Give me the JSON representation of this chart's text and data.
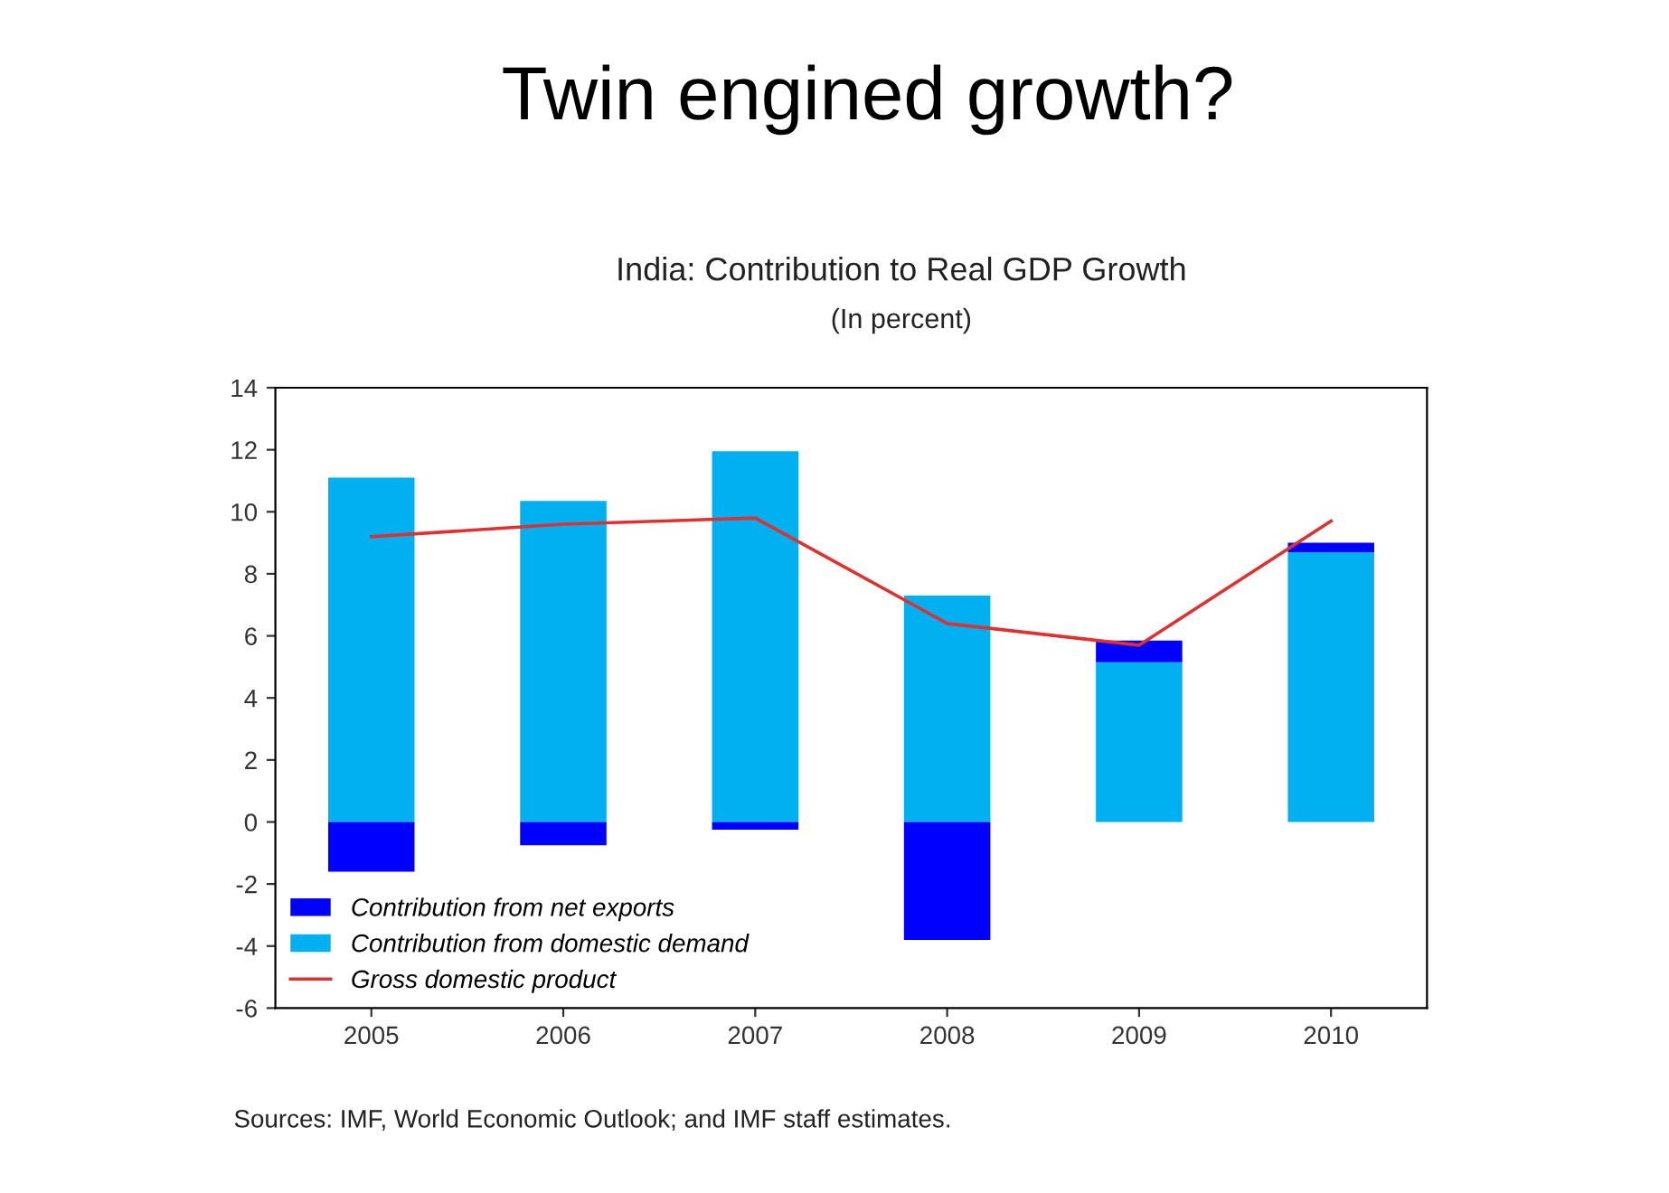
{
  "chart_data": {
    "type": "bar",
    "stacked": true,
    "title": "India: Contribution to Real GDP Growth",
    "subtitle": "(In percent)",
    "annotations": [
      "Twin engined growth?",
      "Sources: IMF, World Economic Outlook; and IMF staff estimates."
    ],
    "categories": [
      "2005",
      "2006",
      "2007",
      "2008",
      "2009",
      "2010"
    ],
    "series": [
      {
        "name": "Contribution from domestic demand",
        "color": "#00b0f0",
        "values": [
          11.1,
          10.35,
          11.95,
          7.3,
          5.15,
          8.7
        ]
      },
      {
        "name": "Contribution from net exports",
        "color": "#0000ff",
        "values": [
          -1.6,
          -0.75,
          -0.25,
          -3.8,
          0.7,
          0.3
        ]
      },
      {
        "name": "Gross domestic product",
        "type": "line",
        "color": "#e03030",
        "values": [
          9.2,
          9.6,
          9.8,
          6.4,
          5.7,
          9.7
        ]
      }
    ],
    "ylim": [
      -6,
      14
    ],
    "yticks": [
      -6,
      -4,
      -2,
      0,
      2,
      4,
      6,
      8,
      10,
      12,
      14
    ],
    "grid": false,
    "legend": "bottom left",
    "marker": "none",
    "line_style": "solid"
  }
}
